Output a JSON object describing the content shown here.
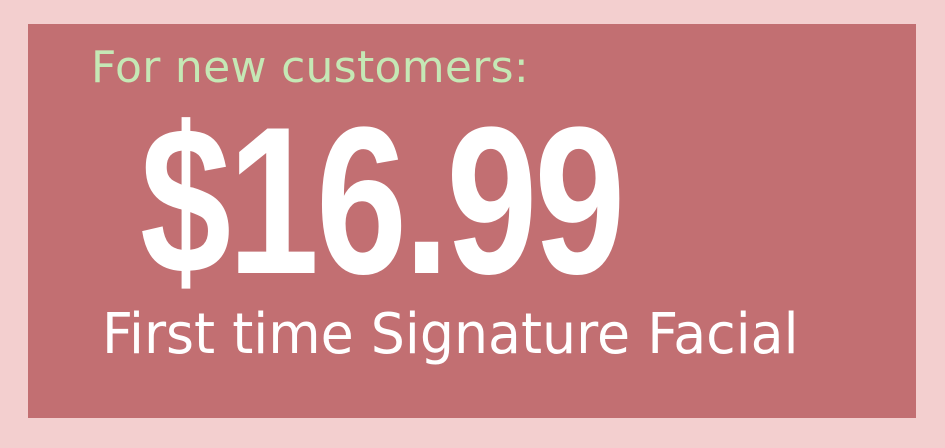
{
  "promo": {
    "tagline": "For new customers:",
    "price": "$16.99",
    "service": "First time Signature Facial"
  },
  "colors": {
    "outer_background": "#f3cfcf",
    "panel_background": "#c26f72",
    "tagline_text": "#c5e8b5",
    "main_text": "#ffffff"
  }
}
